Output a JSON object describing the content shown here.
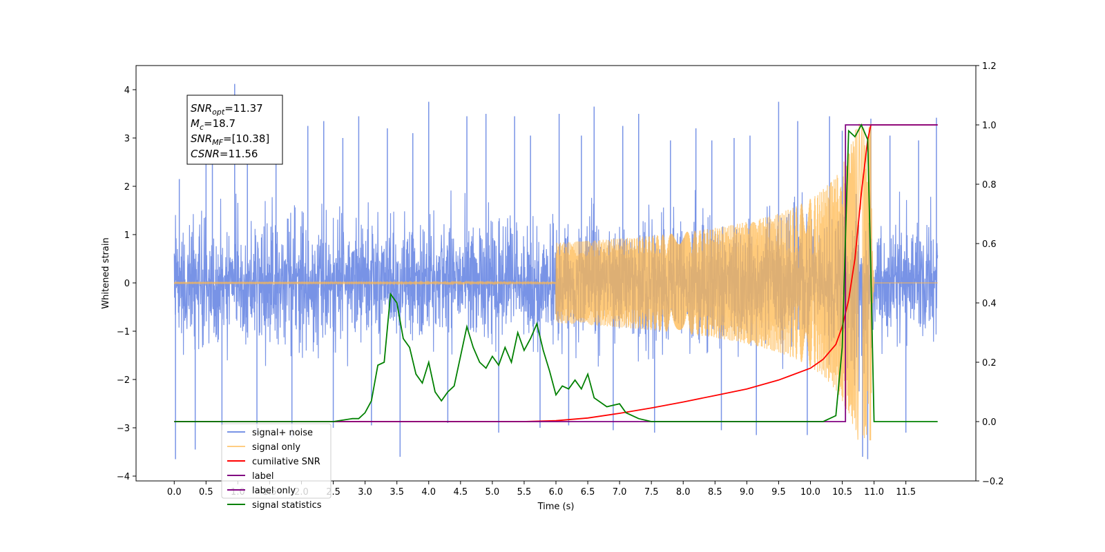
{
  "chart_data": {
    "type": "line",
    "title": "",
    "xlabel": "Time (s)",
    "ylabel_left": "Whitened strain",
    "ylabel_right": "",
    "xlim": [
      -0.6,
      12.6
    ],
    "ylim_left": [
      -4.1,
      4.5
    ],
    "ylim_right": [
      -0.2,
      1.2
    ],
    "grid": false,
    "x_ticks": [
      0.0,
      0.5,
      1.0,
      1.5,
      2.0,
      2.5,
      3.0,
      3.5,
      4.0,
      4.5,
      5.0,
      5.5,
      6.0,
      6.5,
      7.0,
      7.5,
      8.0,
      8.5,
      9.0,
      9.5,
      10.0,
      10.5,
      11.0,
      11.5
    ],
    "x_tick_labels": [
      "0.0",
      "0.5",
      "1.0",
      "1.5",
      "2.0",
      "2.5",
      "3.0",
      "3.5",
      "4.0",
      "4.5",
      "5.0",
      "5.5",
      "6.0",
      "6.5",
      "7.0",
      "7.5",
      "8.0",
      "8.5",
      "9.0",
      "9.5",
      "10.0",
      "10.5",
      "11.0",
      "11.5"
    ],
    "y_left_ticks": [
      -4,
      -3,
      -2,
      -1,
      0,
      1,
      2,
      3,
      4
    ],
    "y_left_tick_labels": [
      "−4",
      "−3",
      "−2",
      "−1",
      "0",
      "1",
      "2",
      "3",
      "4"
    ],
    "y_right_ticks": [
      -0.2,
      0.0,
      0.2,
      0.4,
      0.6,
      0.8,
      1.0,
      1.2
    ],
    "y_right_tick_labels": [
      "−0.2",
      "0.0",
      "0.2",
      "0.4",
      "0.6",
      "0.8",
      "1.0",
      "1.2"
    ],
    "legend_position": "lower-left",
    "annotation": {
      "lines": [
        {
          "base": "SNR",
          "sub": "opt",
          "text": "=11.37"
        },
        {
          "base": "M",
          "sub": "c",
          "text": "=18.7"
        },
        {
          "base": "SNR",
          "sub": "MF",
          "text": "=[10.38]"
        },
        {
          "base": "CSNR",
          "sub": "",
          "text": "=11.56"
        }
      ]
    },
    "series": [
      {
        "name": "signal+ noise",
        "axis": "left",
        "color": "#7893e6",
        "style": "dense-noise",
        "x_range": [
          0.0,
          12.0
        ],
        "envelope": {
          "x": [
            0.0,
            1.0,
            2.0,
            3.0,
            4.0,
            5.0,
            6.0,
            7.0,
            8.0,
            9.0,
            10.0,
            10.5,
            10.8,
            11.0,
            12.0
          ],
          "upper": [
            2.1,
            2.2,
            2.2,
            2.2,
            2.2,
            2.2,
            2.2,
            2.2,
            2.2,
            2.2,
            2.3,
            2.4,
            2.7,
            2.2,
            2.2
          ],
          "lower": [
            -2.0,
            -2.0,
            -2.0,
            -2.0,
            -2.0,
            -2.0,
            -2.0,
            -2.0,
            -2.0,
            -2.0,
            -2.1,
            -2.2,
            -3.3,
            -2.1,
            -2.0
          ]
        },
        "spikes": [
          [
            0.02,
            -3.65
          ],
          [
            0.08,
            2.15
          ],
          [
            0.33,
            -3.45
          ],
          [
            0.5,
            2.5
          ],
          [
            0.6,
            2.6
          ],
          [
            0.75,
            -3.05
          ],
          [
            0.95,
            4.12
          ],
          [
            1.15,
            2.65
          ],
          [
            1.3,
            -3.1
          ],
          [
            1.6,
            2.95
          ],
          [
            1.85,
            -3.2
          ],
          [
            2.1,
            3.25
          ],
          [
            2.35,
            3.35
          ],
          [
            2.5,
            -3.0
          ],
          [
            2.65,
            3.0
          ],
          [
            2.9,
            3.45
          ],
          [
            3.1,
            -2.95
          ],
          [
            3.35,
            3.2
          ],
          [
            3.55,
            -3.6
          ],
          [
            3.75,
            3.1
          ],
          [
            4.0,
            3.75
          ],
          [
            4.3,
            -2.9
          ],
          [
            4.6,
            3.45
          ],
          [
            4.9,
            3.5
          ],
          [
            5.1,
            -3.1
          ],
          [
            5.35,
            3.45
          ],
          [
            5.6,
            3.05
          ],
          [
            5.75,
            -3.0
          ],
          [
            6.05,
            3.5
          ],
          [
            6.2,
            -2.95
          ],
          [
            6.4,
            3.05
          ],
          [
            6.6,
            3.65
          ],
          [
            6.9,
            -3.05
          ],
          [
            7.05,
            3.25
          ],
          [
            7.3,
            3.5
          ],
          [
            7.55,
            -3.1
          ],
          [
            7.8,
            2.95
          ],
          [
            8.2,
            3.2
          ],
          [
            8.45,
            2.95
          ],
          [
            8.6,
            -3.05
          ],
          [
            8.8,
            3.0
          ],
          [
            9.05,
            3.05
          ],
          [
            9.15,
            -3.15
          ],
          [
            9.5,
            3.75
          ],
          [
            9.8,
            3.35
          ],
          [
            9.95,
            -3.15
          ],
          [
            10.3,
            3.45
          ],
          [
            10.5,
            3.15
          ],
          [
            10.82,
            -3.6
          ],
          [
            10.9,
            -3.65
          ],
          [
            10.95,
            3.4
          ],
          [
            11.25,
            3.05
          ],
          [
            11.5,
            -3.1
          ],
          [
            11.7,
            2.95
          ],
          [
            11.98,
            3.42
          ]
        ]
      },
      {
        "name": "signal only",
        "axis": "left",
        "color": "#ffb84d",
        "style": "chirp",
        "x_range": [
          0.0,
          12.0
        ],
        "merger_time": 10.95,
        "peak_amplitude": 3.3
      },
      {
        "name": "cumilative SNR",
        "axis": "right",
        "color": "#ff0000",
        "x": [
          0.0,
          5.5,
          6.0,
          6.5,
          7.0,
          7.5,
          8.0,
          8.5,
          9.0,
          9.5,
          10.0,
          10.2,
          10.4,
          10.5,
          10.6,
          10.7,
          10.8,
          10.9,
          10.95,
          11.0,
          12.0
        ],
        "y": [
          0.0,
          0.0,
          0.003,
          0.012,
          0.028,
          0.046,
          0.066,
          0.088,
          0.11,
          0.14,
          0.18,
          0.21,
          0.26,
          0.32,
          0.41,
          0.55,
          0.77,
          0.95,
          1.0,
          1.0,
          1.0
        ]
      },
      {
        "name": "label",
        "axis": "right",
        "color": "#800080",
        "x": [
          0.0,
          10.55,
          10.55,
          11.0,
          11.0,
          12.0
        ],
        "y": [
          0.0,
          0.0,
          1.0,
          1.0,
          1.0,
          1.0
        ]
      },
      {
        "name": "label only",
        "axis": "right",
        "color": "#800080",
        "hidden_in_plot": true,
        "x": [],
        "y": []
      },
      {
        "name": "signal statistics",
        "axis": "right",
        "color": "#008000",
        "x": [
          0.0,
          2.5,
          2.8,
          2.9,
          3.0,
          3.1,
          3.2,
          3.3,
          3.4,
          3.5,
          3.6,
          3.7,
          3.8,
          3.9,
          4.0,
          4.1,
          4.2,
          4.3,
          4.4,
          4.5,
          4.6,
          4.7,
          4.8,
          4.9,
          5.0,
          5.1,
          5.2,
          5.3,
          5.4,
          5.5,
          5.6,
          5.7,
          5.8,
          5.9,
          6.0,
          6.1,
          6.2,
          6.3,
          6.4,
          6.5,
          6.6,
          6.8,
          7.0,
          7.1,
          7.3,
          7.5,
          7.8,
          8.5,
          9.5,
          10.2,
          10.4,
          10.5,
          10.6,
          10.7,
          10.8,
          10.9,
          10.95,
          11.0,
          12.0
        ],
        "y": [
          0.0,
          0.0,
          0.01,
          0.01,
          0.03,
          0.07,
          0.19,
          0.2,
          0.43,
          0.4,
          0.28,
          0.25,
          0.16,
          0.13,
          0.2,
          0.1,
          0.07,
          0.1,
          0.12,
          0.22,
          0.32,
          0.25,
          0.2,
          0.18,
          0.22,
          0.19,
          0.25,
          0.2,
          0.3,
          0.24,
          0.28,
          0.33,
          0.24,
          0.17,
          0.09,
          0.12,
          0.11,
          0.14,
          0.11,
          0.16,
          0.08,
          0.05,
          0.06,
          0.03,
          0.01,
          0.0,
          0.0,
          0.0,
          0.0,
          0.0,
          0.02,
          0.25,
          0.98,
          0.96,
          1.0,
          0.95,
          0.5,
          0.0,
          0.0
        ]
      }
    ]
  }
}
